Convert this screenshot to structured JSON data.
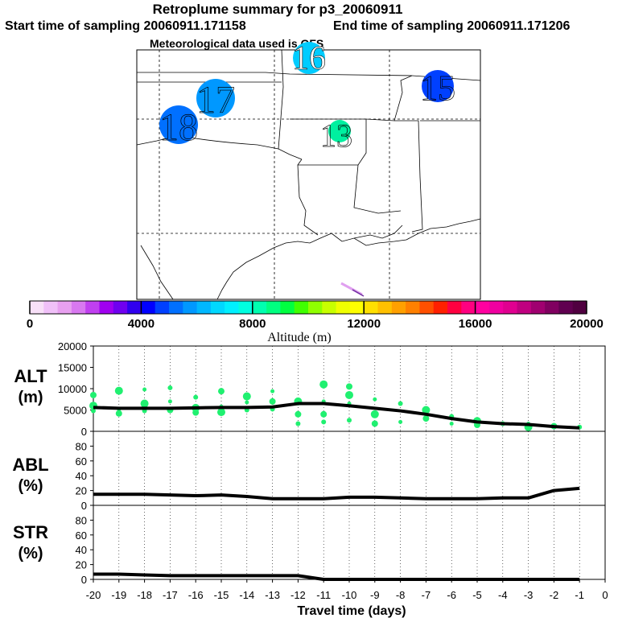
{
  "header": {
    "title": "Retroplume summary for p3_20060911",
    "start_label": "Start time of sampling 20060911.171158",
    "end_label": "End time of sampling 20060911.171206",
    "met_label": "Meteorological data used is GFS"
  },
  "chart_data": [
    {
      "type": "map",
      "title": "Retroplume summary for p3_20060911",
      "plume_labels": [
        {
          "label": "16",
          "altitude_m": 8400,
          "location": "top-center"
        },
        {
          "label": "17",
          "altitude_m": 7000,
          "location": "upper-left"
        },
        {
          "label": "18",
          "altitude_m": 5800,
          "location": "left"
        },
        {
          "label": "15",
          "altitude_m": 5500,
          "location": "upper-right"
        },
        {
          "label": "13",
          "altitude_m": 9400,
          "location": "center"
        }
      ],
      "trace_colors": [
        "#7030a0",
        "#e0a0f0"
      ]
    },
    {
      "type": "colorbar",
      "xlabel": "Altitude (m)",
      "range": [
        0,
        20000
      ],
      "ticks": [
        0,
        4000,
        8000,
        12000,
        16000,
        20000
      ],
      "colors": [
        "#f8e0f8",
        "#f0c0f8",
        "#e8a0f0",
        "#d878f0",
        "#c040f0",
        "#a000f0",
        "#7000f0",
        "#3000f0",
        "#0000ff",
        "#0040ff",
        "#0070ff",
        "#0098ff",
        "#00b8ff",
        "#00d8ff",
        "#00f0ff",
        "#00ffe0",
        "#00ffb0",
        "#00ff80",
        "#00ff40",
        "#40ff00",
        "#90ff00",
        "#c8ff00",
        "#f0ff00",
        "#ffff00",
        "#ffe000",
        "#ffc000",
        "#ffa000",
        "#ff8000",
        "#ff5000",
        "#ff2000",
        "#ff0040",
        "#ff0080",
        "#ff00a0",
        "#f000a0",
        "#e00090",
        "#c00080",
        "#a00070",
        "#800060",
        "#600050",
        "#500040"
      ]
    },
    {
      "type": "line",
      "name": "ALT",
      "ylabel": "ALT (m)",
      "ylim": [
        0,
        20000
      ],
      "yticks": [
        0,
        5000,
        10000,
        15000,
        20000
      ],
      "x": [
        -20,
        -19,
        -18,
        -17,
        -16,
        -15,
        -14,
        -13,
        -12,
        -11,
        -10,
        -9,
        -8,
        -7,
        -6,
        -5,
        -4,
        -3,
        -2,
        -1
      ],
      "values": [
        5600,
        5400,
        5400,
        5400,
        5500,
        5600,
        5600,
        5700,
        6500,
        6500,
        6000,
        5400,
        4800,
        4000,
        3000,
        2200,
        1800,
        1600,
        1100,
        800
      ],
      "scatter_points": [
        {
          "x": -20,
          "y": 6000
        },
        {
          "x": -20,
          "y": 8500
        },
        {
          "x": -20,
          "y": 4800
        },
        {
          "x": -19,
          "y": 5200
        },
        {
          "x": -19,
          "y": 9500
        },
        {
          "x": -19,
          "y": 4200
        },
        {
          "x": -18,
          "y": 4800
        },
        {
          "x": -18,
          "y": 9800
        },
        {
          "x": -18,
          "y": 6500
        },
        {
          "x": -17,
          "y": 5000
        },
        {
          "x": -17,
          "y": 10200
        },
        {
          "x": -17,
          "y": 7000
        },
        {
          "x": -16,
          "y": 5500
        },
        {
          "x": -16,
          "y": 4400
        },
        {
          "x": -16,
          "y": 8000
        },
        {
          "x": -15,
          "y": 5800
        },
        {
          "x": -15,
          "y": 4500
        },
        {
          "x": -15,
          "y": 9400
        },
        {
          "x": -14,
          "y": 5000
        },
        {
          "x": -14,
          "y": 6800
        },
        {
          "x": -14,
          "y": 8200
        },
        {
          "x": -13,
          "y": 7000
        },
        {
          "x": -13,
          "y": 5200
        },
        {
          "x": -13,
          "y": 9400
        },
        {
          "x": -12,
          "y": 7000
        },
        {
          "x": -12,
          "y": 4000
        },
        {
          "x": -12,
          "y": 1800
        },
        {
          "x": -11,
          "y": 7000
        },
        {
          "x": -11,
          "y": 11000
        },
        {
          "x": -11,
          "y": 4000
        },
        {
          "x": -11,
          "y": 2200
        },
        {
          "x": -10,
          "y": 6500
        },
        {
          "x": -10,
          "y": 8500
        },
        {
          "x": -10,
          "y": 10500
        },
        {
          "x": -10,
          "y": 2600
        },
        {
          "x": -9,
          "y": 7500
        },
        {
          "x": -9,
          "y": 4000
        },
        {
          "x": -9,
          "y": 1800
        },
        {
          "x": -8,
          "y": 6500
        },
        {
          "x": -8,
          "y": 2200
        },
        {
          "x": -7,
          "y": 5000
        },
        {
          "x": -7,
          "y": 3000
        },
        {
          "x": -6,
          "y": 3500
        },
        {
          "x": -6,
          "y": 1800
        },
        {
          "x": -5,
          "y": 2400
        },
        {
          "x": -5,
          "y": 1500
        },
        {
          "x": -4,
          "y": 1800
        },
        {
          "x": -3,
          "y": 1800
        },
        {
          "x": -3,
          "y": 1000
        },
        {
          "x": -2,
          "y": 1200
        },
        {
          "x": -1,
          "y": 1000
        }
      ]
    },
    {
      "type": "line",
      "name": "ABL",
      "ylabel": "ABL (%)",
      "ylim": [
        0,
        100
      ],
      "yticks": [
        0,
        20,
        40,
        60,
        80
      ],
      "x": [
        -20,
        -19,
        -18,
        -17,
        -16,
        -15,
        -14,
        -13,
        -12,
        -11,
        -10,
        -9,
        -8,
        -7,
        -6,
        -5,
        -4,
        -3,
        -2,
        -1
      ],
      "values": [
        15,
        15,
        15,
        14,
        13,
        14,
        12,
        9,
        9,
        9,
        11,
        11,
        10,
        9,
        9,
        9,
        10,
        10,
        20,
        23
      ]
    },
    {
      "type": "line",
      "name": "STR",
      "ylabel": "STR (%)",
      "ylim": [
        0,
        100
      ],
      "yticks": [
        0,
        20,
        40,
        60,
        80
      ],
      "xlabel": "Travel time (days)",
      "xlim": [
        -20,
        0
      ],
      "xticks": [
        -20,
        -19,
        -18,
        -17,
        -16,
        -15,
        -14,
        -13,
        -12,
        -11,
        -10,
        -9,
        -8,
        -7,
        -6,
        -5,
        -4,
        -3,
        -2,
        -1,
        0
      ],
      "x": [
        -20,
        -19,
        -18,
        -17,
        -16,
        -15,
        -14,
        -13,
        -12,
        -11,
        -10,
        -9,
        -8,
        -7,
        -6,
        -5,
        -4,
        -3,
        -2,
        -1
      ],
      "values": [
        7,
        7,
        6,
        5,
        5,
        5,
        5,
        5,
        5,
        0,
        0,
        0,
        0,
        0,
        0,
        0,
        0,
        0,
        0,
        0
      ]
    }
  ]
}
